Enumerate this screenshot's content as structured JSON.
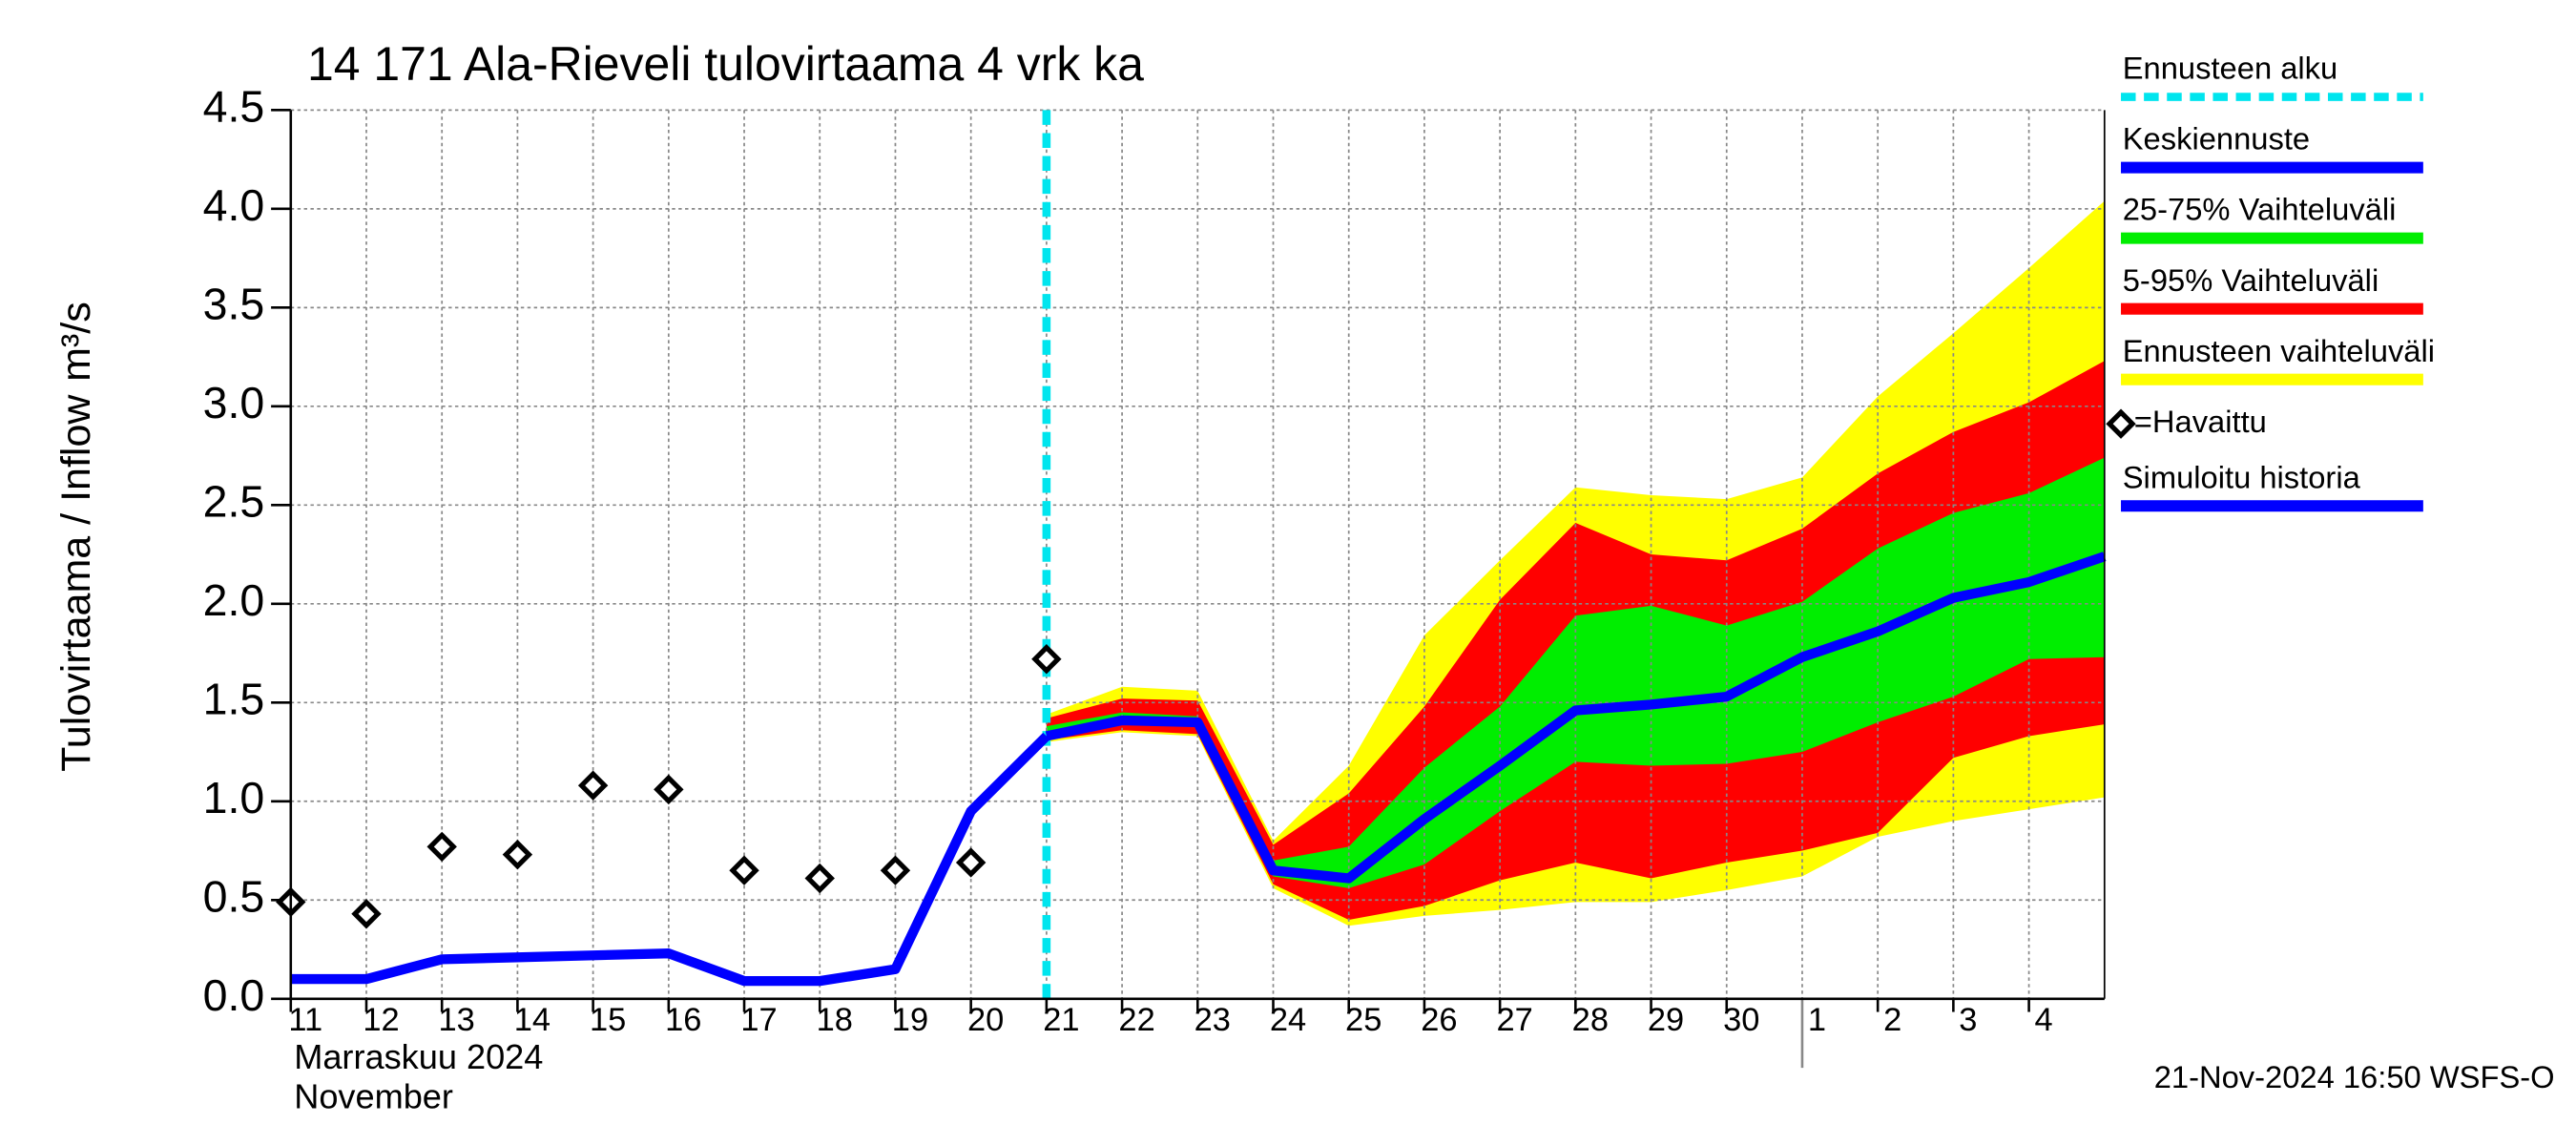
{
  "chart_data": {
    "type": "forecast",
    "title": "14 171 Ala-Rieveli tulovirtaama 4 vrk ka",
    "ylabel": "Tulovirtaama / Inflow",
    "yunit": "m³/s",
    "xlabel_lines": [
      "Marraskuu 2024",
      "November"
    ],
    "footer": "21-Nov-2024 16:50 WSFS-O",
    "ylim": [
      0,
      4.5
    ],
    "yticks": [
      {
        "value": 0,
        "label": "0.0"
      },
      0.5,
      {
        "value": 1,
        "label": "1.0"
      },
      1.5,
      {
        "value": 2,
        "label": "2.0"
      },
      2.5,
      {
        "value": 3,
        "label": "3.0"
      },
      3.5,
      {
        "value": 4,
        "label": "4.0"
      },
      4.5
    ],
    "xlim": [
      "2024-11-11",
      "2024-12-05"
    ],
    "xticks": [
      {
        "value": "2024-11-11",
        "label": "11"
      },
      {
        "value": "2024-11-12",
        "label": "12"
      },
      {
        "value": "2024-11-13",
        "label": "13"
      },
      {
        "value": "2024-11-14",
        "label": "14"
      },
      {
        "value": "2024-11-15",
        "label": "15"
      },
      {
        "value": "2024-11-16",
        "label": "16"
      },
      {
        "value": "2024-11-17",
        "label": "17"
      },
      {
        "value": "2024-11-18",
        "label": "18"
      },
      {
        "value": "2024-11-19",
        "label": "19"
      },
      {
        "value": "2024-11-20",
        "label": "20"
      },
      {
        "value": "2024-11-21",
        "label": "21"
      },
      {
        "value": "2024-11-22",
        "label": "22"
      },
      {
        "value": "2024-11-23",
        "label": "23"
      },
      {
        "value": "2024-11-24",
        "label": "24"
      },
      {
        "value": "2024-11-25",
        "label": "25"
      },
      {
        "value": "2024-11-26",
        "label": "26"
      },
      {
        "value": "2024-11-27",
        "label": "27"
      },
      {
        "value": "2024-11-28",
        "label": "28"
      },
      {
        "value": "2024-11-29",
        "label": "29"
      },
      {
        "value": "2024-11-30",
        "label": "30"
      },
      {
        "value": "2024-12-01",
        "label": "1"
      },
      {
        "value": "2024-12-02",
        "label": "2"
      },
      {
        "value": "2024-12-03",
        "label": "3"
      },
      {
        "value": "2024-12-04",
        "label": "4"
      }
    ],
    "grid": true,
    "forecast_start": {
      "name": "Ennusteen alku",
      "color": "#00e5ee",
      "x": "2024-11-21"
    },
    "bands": [
      {
        "name": "Ennusteen vaihteluväli",
        "color": "#ffff00",
        "x": [
          "2024-11-21",
          "2024-11-22",
          "2024-11-23",
          "2024-11-24",
          "2024-11-25",
          "2024-11-26",
          "2024-11-27",
          "2024-11-28",
          "2024-11-29",
          "2024-11-30",
          "2024-12-01",
          "2024-12-02",
          "2024-12-03",
          "2024-12-04",
          "2024-12-05"
        ],
        "low": [
          1.3,
          1.35,
          1.33,
          0.56,
          0.37,
          0.42,
          0.45,
          0.49,
          0.49,
          0.55,
          0.62,
          0.82,
          0.9,
          0.96,
          1.02
        ],
        "high": [
          1.44,
          1.58,
          1.56,
          0.8,
          1.18,
          1.84,
          2.22,
          2.59,
          2.55,
          2.53,
          2.64,
          3.05,
          3.37,
          3.7,
          4.04
        ]
      },
      {
        "name": "5-95% Vaihteluväli",
        "color": "#ff0000",
        "x": [
          "2024-11-21",
          "2024-11-22",
          "2024-11-23",
          "2024-11-24",
          "2024-11-25",
          "2024-11-26",
          "2024-11-27",
          "2024-11-28",
          "2024-11-29",
          "2024-11-30",
          "2024-12-01",
          "2024-12-02",
          "2024-12-03",
          "2024-12-04",
          "2024-12-05"
        ],
        "low": [
          1.31,
          1.36,
          1.34,
          0.58,
          0.4,
          0.47,
          0.6,
          0.69,
          0.61,
          0.69,
          0.75,
          0.84,
          1.22,
          1.33,
          1.39
        ],
        "high": [
          1.42,
          1.52,
          1.51,
          0.78,
          1.04,
          1.48,
          2.02,
          2.41,
          2.25,
          2.22,
          2.38,
          2.66,
          2.87,
          3.02,
          3.23
        ]
      },
      {
        "name": "25-75% Vaihteluväli",
        "color": "#00ee00",
        "x": [
          "2024-11-21",
          "2024-11-22",
          "2024-11-23",
          "2024-11-24",
          "2024-11-25",
          "2024-11-26",
          "2024-11-27",
          "2024-11-28",
          "2024-11-29",
          "2024-11-30",
          "2024-12-01",
          "2024-12-02",
          "2024-12-03",
          "2024-12-04",
          "2024-12-05"
        ],
        "low": [
          1.33,
          1.4,
          1.39,
          0.62,
          0.56,
          0.68,
          0.95,
          1.2,
          1.18,
          1.19,
          1.25,
          1.4,
          1.53,
          1.72,
          1.73
        ],
        "high": [
          1.38,
          1.45,
          1.43,
          0.7,
          0.77,
          1.17,
          1.48,
          1.94,
          1.99,
          1.89,
          2.01,
          2.28,
          2.46,
          2.56,
          2.74
        ]
      }
    ],
    "series": [
      {
        "name": "Keskiennuste",
        "color": "#0000ff",
        "marker": "line",
        "x": [
          "2024-11-21",
          "2024-11-22",
          "2024-11-23",
          "2024-11-24",
          "2024-11-25",
          "2024-11-26",
          "2024-11-27",
          "2024-11-28",
          "2024-11-29",
          "2024-11-30",
          "2024-12-01",
          "2024-12-02",
          "2024-12-03",
          "2024-12-04",
          "2024-12-05"
        ],
        "values": [
          1.33,
          1.41,
          1.4,
          0.65,
          0.61,
          0.91,
          1.18,
          1.46,
          1.49,
          1.53,
          1.73,
          1.86,
          2.03,
          2.11,
          2.24
        ]
      },
      {
        "name": "=Havaittu",
        "color": "#000000",
        "marker": "diamond",
        "x": [
          "2024-11-11",
          "2024-11-12",
          "2024-11-13",
          "2024-11-14",
          "2024-11-15",
          "2024-11-16",
          "2024-11-17",
          "2024-11-18",
          "2024-11-19",
          "2024-11-20",
          "2024-11-21"
        ],
        "values": [
          0.49,
          0.43,
          0.77,
          0.73,
          1.08,
          1.06,
          0.65,
          0.61,
          0.65,
          0.69,
          1.72
        ]
      },
      {
        "name": "Simuloitu historia",
        "color": "#0000ff",
        "marker": "line",
        "x": [
          "2024-11-11",
          "2024-11-12",
          "2024-11-13",
          "2024-11-14",
          "2024-11-15",
          "2024-11-16",
          "2024-11-17",
          "2024-11-18",
          "2024-11-19",
          "2024-11-20",
          "2024-11-21"
        ],
        "values": [
          0.1,
          0.1,
          0.2,
          0.21,
          0.22,
          0.23,
          0.09,
          0.09,
          0.15,
          0.95,
          1.33
        ]
      }
    ]
  }
}
